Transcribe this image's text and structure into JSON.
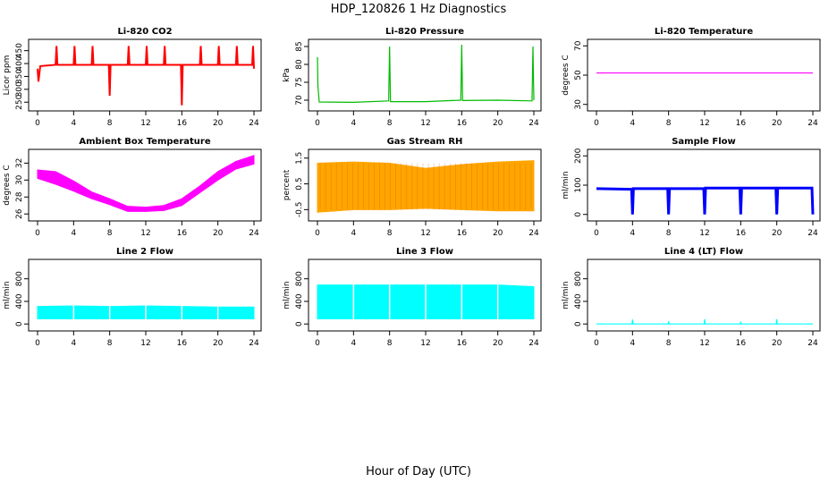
{
  "figure": {
    "title": "HDP_120826  1 Hz Diagnostics",
    "xlabel": "Hour of Day (UTC)"
  },
  "chart_data": [
    {
      "type": "line",
      "title": "Li-820 CO2",
      "ylabel": "Licor ppm",
      "color": "#ff0000",
      "xlim": [
        0,
        24
      ],
      "ylim": [
        230,
        480
      ],
      "xticks": [
        0,
        4,
        8,
        12,
        16,
        20,
        24
      ],
      "yticks": [
        250,
        300,
        350,
        400,
        450
      ],
      "series": [
        {
          "name": "CO2",
          "x": [
            0,
            0.1,
            0.3,
            2.0,
            2.1,
            2.2,
            4.0,
            4.1,
            4.2,
            6.0,
            6.1,
            6.2,
            7.9,
            8.0,
            8.1,
            10.0,
            10.1,
            10.2,
            12.0,
            12.1,
            12.2,
            14.0,
            14.1,
            14.2,
            15.9,
            16.0,
            16.1,
            18.0,
            18.1,
            18.2,
            20.0,
            20.1,
            20.2,
            22.0,
            22.1,
            22.2,
            23.8,
            23.9,
            24.0
          ],
          "values": [
            380,
            330,
            390,
            395,
            468,
            395,
            395,
            468,
            395,
            395,
            468,
            395,
            395,
            275,
            395,
            395,
            468,
            395,
            395,
            468,
            395,
            395,
            468,
            395,
            395,
            238,
            395,
            395,
            468,
            395,
            395,
            468,
            395,
            395,
            468,
            395,
            395,
            468,
            380
          ]
        }
      ]
    },
    {
      "type": "line",
      "title": "Li-820 Pressure",
      "ylabel": "kPa",
      "color": "#00bb00",
      "xlim": [
        0,
        24
      ],
      "ylim": [
        68,
        86
      ],
      "xticks": [
        0,
        4,
        8,
        12,
        16,
        20,
        24
      ],
      "yticks": [
        70,
        75,
        80,
        85
      ],
      "series": [
        {
          "name": "Pressure",
          "x": [
            0,
            0.05,
            0.2,
            4,
            7.9,
            8.0,
            8.1,
            12,
            15.9,
            16.0,
            16.1,
            20,
            23.8,
            23.9,
            24
          ],
          "values": [
            82,
            74,
            69.5,
            69.4,
            69.8,
            85,
            69.6,
            69.6,
            70,
            85.5,
            69.9,
            70,
            69.8,
            85,
            70
          ]
        }
      ]
    },
    {
      "type": "line",
      "title": "Li-820 Temperature",
      "ylabel": "degrees C",
      "color": "#ff00ff",
      "xlim": [
        0,
        24
      ],
      "ylim": [
        28,
        72
      ],
      "xticks": [
        0,
        4,
        8,
        12,
        16,
        20,
        24
      ],
      "yticks": [
        30,
        50,
        70
      ],
      "series": [
        {
          "name": "Temperature",
          "x": [
            0,
            24
          ],
          "values": [
            51.5,
            51.5
          ]
        }
      ]
    },
    {
      "type": "area",
      "title": "Ambient Box Temperature",
      "ylabel": "degrees C",
      "color": "#ff00ff",
      "xlim": [
        0,
        24
      ],
      "ylim": [
        25.6,
        33.2
      ],
      "xticks": [
        0,
        4,
        8,
        12,
        16,
        20,
        24
      ],
      "yticks": [
        26,
        28,
        30,
        32
      ],
      "series": [
        {
          "name": "upper",
          "x": [
            0,
            2,
            4,
            6,
            8,
            10,
            12,
            14,
            16,
            18,
            20,
            22,
            24
          ],
          "values": [
            31.2,
            31.0,
            29.9,
            28.6,
            27.8,
            26.9,
            26.8,
            27.0,
            27.8,
            29.3,
            31.0,
            32.2,
            32.9
          ]
        },
        {
          "name": "lower",
          "x": [
            0,
            2,
            4,
            6,
            8,
            10,
            12,
            14,
            16,
            18,
            20,
            22,
            24
          ],
          "values": [
            30.2,
            29.5,
            28.7,
            27.8,
            27.1,
            26.3,
            26.3,
            26.4,
            27.0,
            28.5,
            30.0,
            31.3,
            31.9
          ]
        }
      ]
    },
    {
      "type": "area",
      "title": "Gas Stream RH",
      "ylabel": "percent",
      "color": "#ffa500",
      "xlim": [
        0,
        24
      ],
      "ylim": [
        -0.8,
        1.7
      ],
      "xticks": [
        0,
        4,
        8,
        12,
        16,
        20,
        24
      ],
      "yticks": [
        -0.5,
        0.5,
        1.5
      ],
      "series": [
        {
          "name": "upper",
          "x": [
            0,
            4,
            8,
            12,
            16,
            20,
            24
          ],
          "values": [
            1.3,
            1.35,
            1.3,
            1.1,
            1.25,
            1.35,
            1.4
          ]
        },
        {
          "name": "lower",
          "x": [
            0,
            4,
            8,
            12,
            16,
            20,
            24
          ],
          "values": [
            -0.6,
            -0.5,
            -0.5,
            -0.45,
            -0.5,
            -0.55,
            -0.55
          ]
        }
      ]
    },
    {
      "type": "line",
      "title": "Sample Flow",
      "ylabel": "ml/min",
      "color": "#0000ff",
      "xlim": [
        0,
        24
      ],
      "ylim": [
        -10,
        210
      ],
      "xticks": [
        0,
        4,
        8,
        12,
        16,
        20,
        24
      ],
      "yticks": [
        0,
        100,
        200
      ],
      "series": [
        {
          "name": "Sample Flow",
          "x": [
            0,
            3.9,
            4.0,
            4.1,
            7.9,
            8.0,
            8.1,
            11.9,
            12.0,
            12.1,
            15.9,
            16.0,
            16.1,
            19.9,
            20.0,
            20.1,
            23.9,
            24.0
          ],
          "values": [
            88,
            86,
            0,
            88,
            88,
            0,
            88,
            88,
            0,
            90,
            90,
            0,
            90,
            90,
            0,
            90,
            90,
            0
          ]
        }
      ]
    },
    {
      "type": "area",
      "title": "Line 2 Flow",
      "ylabel": "ml/min",
      "color": "#00ffff",
      "xlim": [
        0,
        24
      ],
      "ylim": [
        -60,
        1080
      ],
      "xticks": [
        0,
        4,
        8,
        12,
        16,
        20,
        24
      ],
      "yticks": [
        0,
        400,
        800
      ],
      "series": [
        {
          "name": "upper",
          "x": [
            0,
            4,
            8,
            12,
            16,
            20,
            24
          ],
          "values": [
            310,
            320,
            310,
            320,
            310,
            300,
            300
          ]
        },
        {
          "name": "lower",
          "x": [
            0,
            4,
            8,
            12,
            16,
            20,
            24
          ],
          "values": [
            90,
            90,
            90,
            90,
            90,
            90,
            90
          ]
        }
      ]
    },
    {
      "type": "area",
      "title": "Line 3 Flow",
      "ylabel": "ml/min",
      "color": "#00ffff",
      "xlim": [
        0,
        24
      ],
      "ylim": [
        -60,
        1080
      ],
      "xticks": [
        0,
        4,
        8,
        12,
        16,
        20,
        24
      ],
      "yticks": [
        0,
        400,
        800
      ],
      "series": [
        {
          "name": "upper",
          "x": [
            0,
            4,
            8,
            12,
            16,
            20,
            24
          ],
          "values": [
            690,
            690,
            690,
            690,
            690,
            690,
            660
          ]
        },
        {
          "name": "lower",
          "x": [
            0,
            4,
            8,
            12,
            16,
            20,
            24
          ],
          "values": [
            90,
            90,
            90,
            90,
            90,
            90,
            90
          ]
        }
      ]
    },
    {
      "type": "line",
      "title": "Line 4 (LT) Flow",
      "ylabel": "ml/min",
      "color": "#00ffff",
      "xlim": [
        0,
        24
      ],
      "ylim": [
        -60,
        1080
      ],
      "xticks": [
        0,
        4,
        8,
        12,
        16,
        20,
        24
      ],
      "yticks": [
        0,
        400,
        800
      ],
      "series": [
        {
          "name": "Line 4 Flow",
          "x": [
            0,
            3.95,
            4.0,
            4.05,
            7.95,
            8.0,
            8.05,
            11.95,
            12.0,
            12.05,
            15.95,
            16.0,
            16.05,
            19.95,
            20.0,
            20.05,
            24
          ],
          "values": [
            0,
            0,
            80,
            0,
            0,
            45,
            0,
            0,
            85,
            0,
            0,
            40,
            0,
            0,
            85,
            0,
            0
          ]
        }
      ]
    }
  ]
}
